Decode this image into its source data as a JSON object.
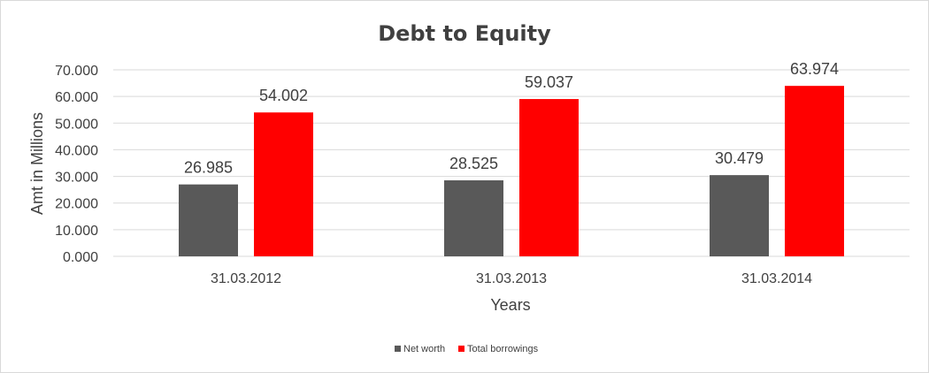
{
  "chart_data": {
    "type": "bar",
    "title": "Debt to Equity",
    "xlabel": "Years",
    "ylabel": "Amt in Millions",
    "categories": [
      "31.03.2012",
      "31.03.2013",
      "31.03.2014"
    ],
    "series": [
      {
        "name": "Net worth",
        "color": "#595959",
        "values": [
          26.985,
          28.525,
          30.479
        ]
      },
      {
        "name": "Total borrowings",
        "color": "#ff0000",
        "values": [
          54.002,
          59.037,
          63.974
        ]
      }
    ],
    "ylim": [
      0,
      70
    ],
    "yticks": [
      "0.000",
      "10.000",
      "20.000",
      "30.000",
      "40.000",
      "50.000",
      "60.000",
      "70.000"
    ],
    "data_labels": [
      [
        "26.985",
        "28.525",
        "30.479"
      ],
      [
        "54.002",
        "59.037",
        "63.974"
      ]
    ],
    "grid": true,
    "legend_position": "bottom"
  }
}
